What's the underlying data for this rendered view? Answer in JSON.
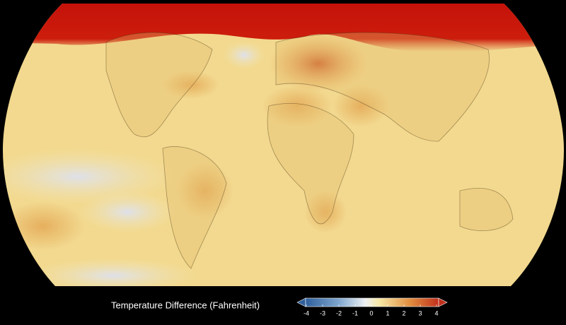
{
  "legend": {
    "title": "Temperature Difference (Fahrenheit)",
    "range": [
      -4,
      4
    ],
    "ticks": [
      -4,
      -3,
      -2,
      -1,
      0,
      1,
      2,
      3,
      4
    ]
  }
}
